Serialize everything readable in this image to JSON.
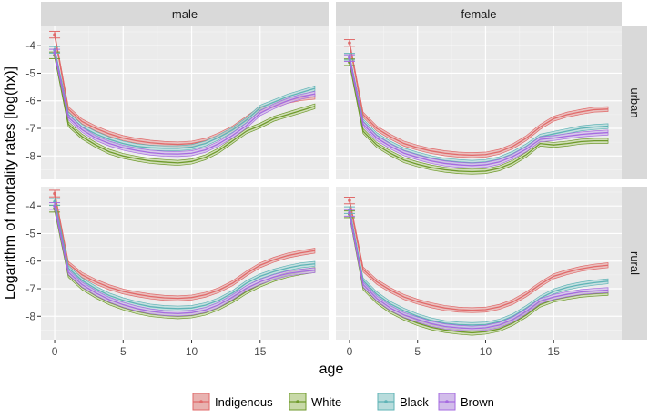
{
  "chart_data": {
    "type": "line",
    "xlabel": "age",
    "ylabel": "Logarithm of mortality rates [log(hx)]",
    "xlim": [
      -1,
      20
    ],
    "ylim": [
      -8.85,
      -3.3
    ],
    "x_ticks": [
      "0",
      "5",
      "10",
      "15"
    ],
    "x_tick_values": [
      0,
      5,
      10,
      15
    ],
    "y_ticks": [
      "-4",
      "-5",
      "-6",
      "-7",
      "-8"
    ],
    "y_tick_values": [
      -4,
      -5,
      -6,
      -7,
      -8
    ],
    "grid": true,
    "legend_position": "bottom",
    "column_facets": [
      "male",
      "female"
    ],
    "row_facets": [
      "urban",
      "rural"
    ],
    "x": [
      0,
      1,
      2,
      3,
      4,
      5,
      6,
      7,
      8,
      9,
      10,
      11,
      12,
      13,
      14,
      15,
      16,
      17,
      18,
      19
    ],
    "series": [
      {
        "name": "Indigenous",
        "color": "#e06a6a",
        "fill": "#e8b2b0"
      },
      {
        "name": "White",
        "color": "#6f9a2c",
        "fill": "#c8d9a8"
      },
      {
        "name": "Black",
        "color": "#5fb3b6",
        "fill": "#b8dcdc"
      },
      {
        "name": "Brown",
        "color": "#a66be0",
        "fill": "#d2bdea"
      }
    ],
    "panels": [
      {
        "col": 0,
        "row": 0,
        "values": {
          "Indigenous": [
            -3.6,
            -6.3,
            -6.75,
            -7.0,
            -7.2,
            -7.35,
            -7.45,
            -7.52,
            -7.56,
            -7.58,
            -7.55,
            -7.45,
            -7.25,
            -7.0,
            -6.65,
            -6.3,
            -6.15,
            -6.0,
            -5.9,
            -5.85
          ],
          "White": [
            -4.35,
            -6.85,
            -7.3,
            -7.6,
            -7.85,
            -8.0,
            -8.1,
            -8.18,
            -8.22,
            -8.25,
            -8.2,
            -8.05,
            -7.8,
            -7.45,
            -7.1,
            -6.9,
            -6.65,
            -6.5,
            -6.35,
            -6.2
          ],
          "Black": [
            -4.15,
            -6.5,
            -6.95,
            -7.2,
            -7.4,
            -7.55,
            -7.65,
            -7.7,
            -7.72,
            -7.72,
            -7.68,
            -7.55,
            -7.32,
            -7.05,
            -6.7,
            -6.25,
            -6.05,
            -5.85,
            -5.7,
            -5.55
          ],
          "Brown": [
            -4.25,
            -6.6,
            -7.05,
            -7.35,
            -7.55,
            -7.7,
            -7.8,
            -7.88,
            -7.92,
            -7.93,
            -7.9,
            -7.78,
            -7.55,
            -7.25,
            -6.9,
            -6.45,
            -6.2,
            -6.0,
            -5.85,
            -5.75
          ]
        }
      },
      {
        "col": 1,
        "row": 0,
        "values": {
          "Indigenous": [
            -3.9,
            -6.5,
            -7.0,
            -7.3,
            -7.55,
            -7.7,
            -7.82,
            -7.9,
            -7.95,
            -7.97,
            -7.95,
            -7.85,
            -7.65,
            -7.35,
            -6.95,
            -6.65,
            -6.5,
            -6.4,
            -6.32,
            -6.3
          ],
          "White": [
            -4.6,
            -7.1,
            -7.6,
            -7.9,
            -8.15,
            -8.3,
            -8.42,
            -8.5,
            -8.55,
            -8.57,
            -8.55,
            -8.45,
            -8.25,
            -7.95,
            -7.55,
            -7.6,
            -7.55,
            -7.48,
            -7.45,
            -7.45
          ],
          "Black": [
            -4.4,
            -6.75,
            -7.25,
            -7.55,
            -7.8,
            -7.95,
            -8.08,
            -8.17,
            -8.22,
            -8.25,
            -8.22,
            -8.12,
            -7.92,
            -7.65,
            -7.3,
            -7.2,
            -7.1,
            -7.0,
            -6.95,
            -6.92
          ],
          "Brown": [
            -4.45,
            -6.85,
            -7.35,
            -7.65,
            -7.9,
            -8.05,
            -8.18,
            -8.27,
            -8.32,
            -8.35,
            -8.32,
            -8.22,
            -8.02,
            -7.75,
            -7.4,
            -7.35,
            -7.28,
            -7.22,
            -7.18,
            -7.15
          ]
        }
      },
      {
        "col": 0,
        "row": 1,
        "values": {
          "Indigenous": [
            -3.55,
            -6.1,
            -6.5,
            -6.75,
            -6.95,
            -7.1,
            -7.2,
            -7.28,
            -7.33,
            -7.35,
            -7.32,
            -7.22,
            -7.05,
            -6.8,
            -6.45,
            -6.15,
            -5.95,
            -5.8,
            -5.7,
            -5.62
          ],
          "White": [
            -4.1,
            -6.5,
            -6.95,
            -7.25,
            -7.5,
            -7.68,
            -7.82,
            -7.92,
            -7.97,
            -8.0,
            -7.97,
            -7.87,
            -7.68,
            -7.42,
            -7.1,
            -6.85,
            -6.65,
            -6.5,
            -6.4,
            -6.32
          ],
          "Black": [
            -3.85,
            -6.25,
            -6.7,
            -7.0,
            -7.25,
            -7.42,
            -7.55,
            -7.65,
            -7.7,
            -7.72,
            -7.7,
            -7.6,
            -7.42,
            -7.15,
            -6.8,
            -6.55,
            -6.38,
            -6.25,
            -6.15,
            -6.1
          ],
          "Brown": [
            -4.0,
            -6.4,
            -6.85,
            -7.15,
            -7.4,
            -7.58,
            -7.72,
            -7.82,
            -7.88,
            -7.9,
            -7.87,
            -7.77,
            -7.58,
            -7.3,
            -6.98,
            -6.75,
            -6.58,
            -6.45,
            -6.38,
            -6.33
          ]
        }
      },
      {
        "col": 1,
        "row": 1,
        "values": {
          "Indigenous": [
            -3.8,
            -6.3,
            -6.75,
            -7.05,
            -7.3,
            -7.47,
            -7.6,
            -7.7,
            -7.76,
            -7.78,
            -7.76,
            -7.66,
            -7.48,
            -7.2,
            -6.85,
            -6.55,
            -6.4,
            -6.28,
            -6.2,
            -6.15
          ],
          "White": [
            -4.3,
            -6.95,
            -7.45,
            -7.8,
            -8.05,
            -8.25,
            -8.4,
            -8.5,
            -8.56,
            -8.6,
            -8.56,
            -8.46,
            -8.25,
            -7.95,
            -7.58,
            -7.4,
            -7.3,
            -7.22,
            -7.18,
            -7.15
          ],
          "Black": [
            -4.15,
            -6.7,
            -7.2,
            -7.55,
            -7.8,
            -8.0,
            -8.15,
            -8.25,
            -8.3,
            -8.32,
            -8.3,
            -8.2,
            -8.0,
            -7.7,
            -7.35,
            -7.1,
            -6.95,
            -6.85,
            -6.78,
            -6.73
          ],
          "Brown": [
            -4.25,
            -6.85,
            -7.35,
            -7.7,
            -7.95,
            -8.12,
            -8.27,
            -8.37,
            -8.42,
            -8.45,
            -8.42,
            -8.32,
            -8.12,
            -7.82,
            -7.45,
            -7.3,
            -7.2,
            -7.12,
            -7.08,
            -7.05
          ]
        }
      }
    ]
  }
}
